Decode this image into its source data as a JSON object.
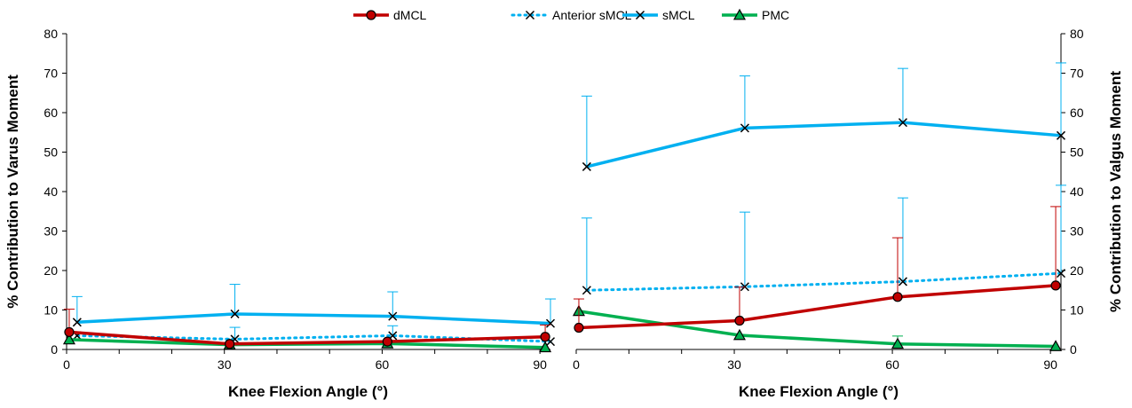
{
  "legend": [
    {
      "name": "dMCL",
      "color": "#c00000",
      "dash": false,
      "marker": "circle"
    },
    {
      "name": "Anterior sMCL",
      "color": "#00b0f0",
      "dash": true,
      "marker": "x"
    },
    {
      "name": "sMCL",
      "color": "#00b0f0",
      "dash": false,
      "marker": "x"
    },
    {
      "name": "PMC",
      "color": "#00b050",
      "dash": false,
      "marker": "triangle"
    }
  ],
  "chart_data": [
    {
      "type": "line",
      "xlabel": "Knee Flexion Angle (°)",
      "ylabel": "% Contribution to Varus Moment",
      "xlim": [
        0,
        92
      ],
      "ylim": [
        0,
        80
      ],
      "xticks": [
        0,
        30,
        60,
        90
      ],
      "yticks": [
        0,
        10,
        20,
        30,
        40,
        50,
        60,
        70,
        80
      ],
      "series": [
        {
          "name": "dMCL",
          "x": [
            0.5,
            31,
            61,
            91
          ],
          "y": [
            4.4,
            1.4,
            2.0,
            3.2
          ],
          "err": [
            5.8,
            0,
            0,
            3.0
          ]
        },
        {
          "name": "Anterior sMCL",
          "x": [
            2,
            32,
            62,
            92
          ],
          "y": [
            3.5,
            2.6,
            3.5,
            2.0
          ],
          "err": [
            0,
            3.0,
            2.5,
            0
          ]
        },
        {
          "name": "sMCL",
          "x": [
            2,
            32,
            62,
            92
          ],
          "y": [
            6.9,
            9.0,
            8.4,
            6.6
          ],
          "err": [
            6.5,
            7.5,
            6.2,
            6.2
          ]
        },
        {
          "name": "PMC",
          "x": [
            0.5,
            31,
            61,
            91
          ],
          "y": [
            2.5,
            1.2,
            1.5,
            0.5
          ],
          "err": [
            0,
            0,
            0,
            0
          ]
        }
      ]
    },
    {
      "type": "line",
      "xlabel": "Knee Flexion Angle (°)",
      "ylabel": "% Contribution to Valgus Moment",
      "xlim": [
        0,
        92
      ],
      "ylim": [
        0,
        80
      ],
      "xticks": [
        0,
        30,
        60,
        90
      ],
      "yticks": [
        0,
        10,
        20,
        30,
        40,
        50,
        60,
        70,
        80
      ],
      "series": [
        {
          "name": "dMCL",
          "x": [
            0.5,
            31,
            61,
            91
          ],
          "y": [
            5.5,
            7.3,
            13.3,
            16.2
          ],
          "err": [
            7.3,
            8.5,
            15.0,
            20.0
          ]
        },
        {
          "name": "Anterior sMCL",
          "x": [
            2,
            32,
            62,
            92
          ],
          "y": [
            15.0,
            15.9,
            17.2,
            19.3
          ],
          "err": [
            18.3,
            18.9,
            21.2,
            22.3
          ]
        },
        {
          "name": "sMCL",
          "x": [
            2,
            32,
            62,
            92
          ],
          "y": [
            46.3,
            56.1,
            57.5,
            54.2
          ],
          "err": [
            17.9,
            13.2,
            13.7,
            18.4
          ]
        },
        {
          "name": "PMC",
          "x": [
            0.5,
            31,
            61,
            91
          ],
          "y": [
            9.7,
            3.6,
            1.4,
            0.8
          ],
          "err": [
            0,
            0,
            2.0,
            0
          ]
        }
      ]
    }
  ]
}
